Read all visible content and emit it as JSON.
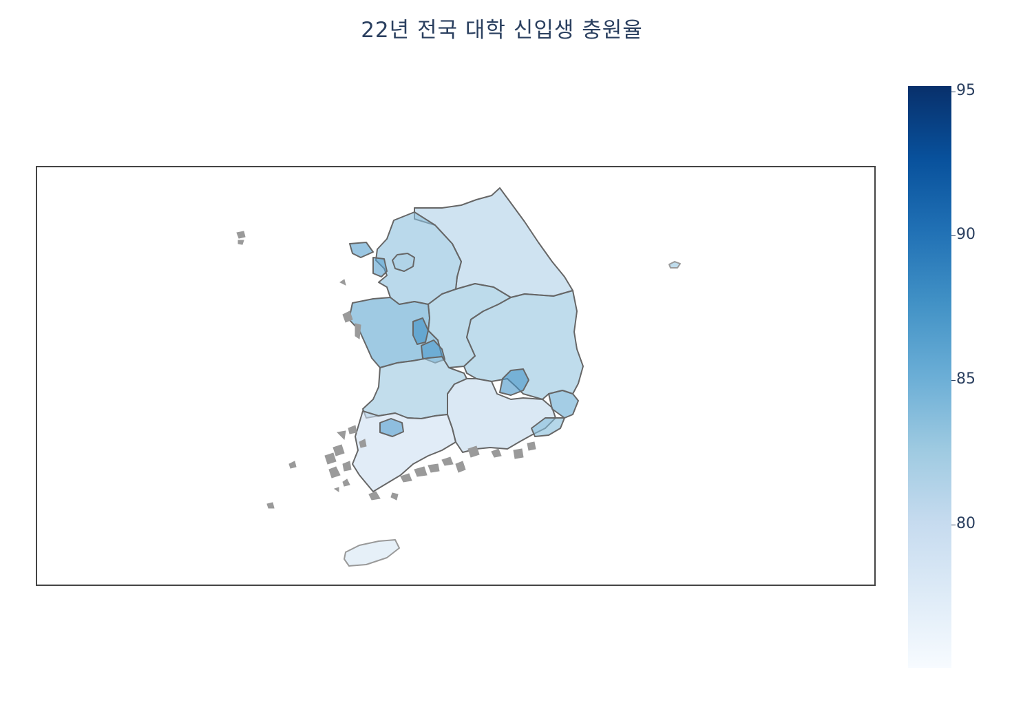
{
  "title": "22년 전국 대학 신입생 충원율",
  "colorscale": {
    "name": "Blues",
    "min": 75.2,
    "max": 95.3,
    "ticks": [
      "95",
      "90",
      "85",
      "80"
    ],
    "colors": [
      "#f7fbff",
      "#deebf7",
      "#c6dbef",
      "#9ecae1",
      "#6baed6",
      "#4292c6",
      "#2171b5",
      "#08519c",
      "#08306b"
    ]
  },
  "map": {
    "region_border_color": "#666666",
    "coast_color": "#999999",
    "region_values": {
      "seoul": 82.0,
      "incheon": 86.5,
      "gyeonggi": 83.6,
      "gangwon": 81.7,
      "chungbuk": 83.4,
      "sejong": 88.0,
      "daejeon": 87.0,
      "chungnam": 86.0,
      "gyeongbuk": 83.2,
      "daegu": 87.5,
      "jeonbuk": 83.0,
      "gwangju": 86.5,
      "jeonnam": 79.5,
      "gyeongnam": 80.5,
      "ulsan": 85.5,
      "busan": 84.0,
      "jeju": 78.5,
      "ulleung": 83.2
    }
  }
}
